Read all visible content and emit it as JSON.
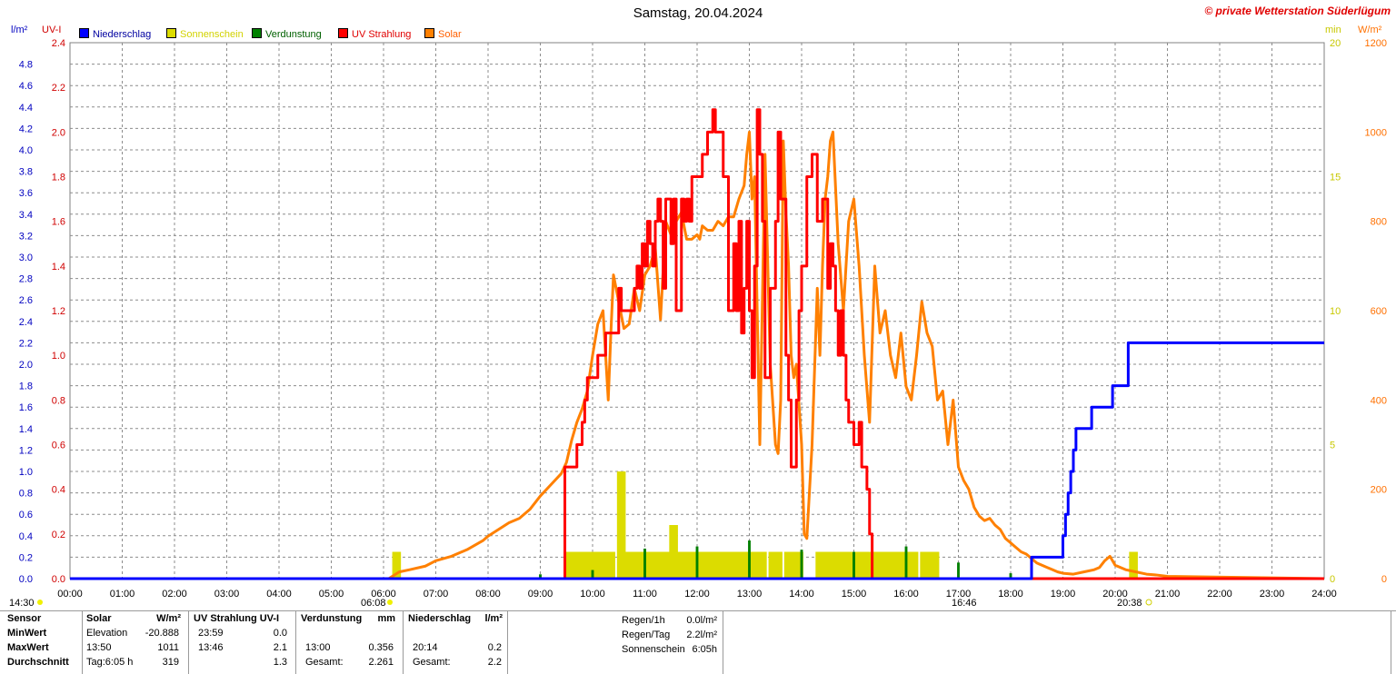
{
  "title": "Samstag, 20.04.2024",
  "copyright": "© private Wetterstation Süderlügum",
  "axis_units": {
    "left_outer": "l/m²",
    "left_inner": "UV-I",
    "right_inner": "min",
    "right_outer": "W/m²"
  },
  "legend": [
    {
      "label": "Niederschlag",
      "color": "#0000ff",
      "text_color": "#0000a0"
    },
    {
      "label": "Sonnenschein",
      "color": "#dcdc00",
      "text_color": "#d2d200"
    },
    {
      "label": "Verdunstung",
      "color": "#008000",
      "text_color": "#006000"
    },
    {
      "label": "UV Strahlung",
      "color": "#ff0000",
      "text_color": "#e00000"
    },
    {
      "label": "Solar",
      "color": "#ff8000",
      "text_color": "#ff6000"
    }
  ],
  "sun_events": {
    "left_time": "14:30",
    "sunrise": "06:08",
    "sunset_marker": "16:46",
    "sunset": "20:38"
  },
  "chart_data": {
    "type": "line",
    "x_label": "",
    "x_ticks": [
      "00:00",
      "01:00",
      "02:00",
      "03:00",
      "04:00",
      "05:00",
      "06:00",
      "07:00",
      "08:00",
      "09:00",
      "10:00",
      "11:00",
      "12:00",
      "13:00",
      "14:00",
      "15:00",
      "16:00",
      "17:00",
      "18:00",
      "19:00",
      "20:00",
      "21:00",
      "22:00",
      "23:00",
      "24:00"
    ],
    "x_range_hours": [
      0,
      24
    ],
    "axes": {
      "precip": {
        "unit": "l/m²",
        "range": [
          0,
          5.0
        ],
        "ticks": [
          "0.0",
          "0.2",
          "0.4",
          "0.6",
          "0.8",
          "1.0",
          "1.2",
          "1.4",
          "1.6",
          "1.8",
          "2.0",
          "2.2",
          "2.4",
          "2.6",
          "2.8",
          "3.0",
          "3.2",
          "3.4",
          "3.6",
          "3.8",
          "4.0",
          "4.2",
          "4.4",
          "4.6",
          "4.8"
        ]
      },
      "uv": {
        "unit": "UV-I",
        "range": [
          0,
          2.4
        ],
        "ticks": [
          "0.0",
          "0.2",
          "0.4",
          "0.6",
          "0.8",
          "1.0",
          "1.2",
          "1.4",
          "1.6",
          "1.8",
          "2.0",
          "2.2",
          "2.4"
        ]
      },
      "sunshine": {
        "unit": "min",
        "range": [
          0,
          20
        ],
        "ticks": [
          "0",
          "5",
          "10",
          "15",
          "20"
        ]
      },
      "solar": {
        "unit": "W/m²",
        "range": [
          0,
          1200
        ],
        "ticks": [
          "0",
          "200",
          "400",
          "600",
          "800",
          "1000",
          "1200"
        ]
      }
    },
    "grid": true,
    "series": [
      {
        "name": "Niederschlag",
        "axis": "precip",
        "color": "#0000ff",
        "style": "step",
        "x": [
          0,
          18.38,
          18.4,
          18.95,
          19.0,
          19.05,
          19.1,
          19.15,
          19.2,
          19.25,
          19.5,
          19.55,
          19.9,
          19.95,
          20.2,
          20.25,
          24
        ],
        "y": [
          0,
          0,
          0.2,
          0.2,
          0.4,
          0.6,
          0.8,
          1.0,
          1.2,
          1.4,
          1.4,
          1.6,
          1.6,
          1.8,
          1.8,
          2.2,
          2.2
        ]
      },
      {
        "name": "UV Strahlung",
        "axis": "uv",
        "color": "#ff0000",
        "style": "step",
        "x": [
          0,
          9.45,
          9.47,
          9.6,
          9.7,
          9.75,
          9.8,
          9.85,
          9.9,
          10.05,
          10.1,
          10.25,
          10.35,
          10.5,
          10.55,
          10.8,
          10.85,
          10.9,
          10.95,
          11.0,
          11.05,
          11.1,
          11.15,
          11.2,
          11.25,
          11.3,
          11.35,
          11.4,
          11.5,
          11.55,
          11.6,
          11.7,
          11.75,
          11.8,
          11.85,
          11.9,
          12.0,
          12.05,
          12.1,
          12.15,
          12.2,
          12.25,
          12.3,
          12.35,
          12.5,
          12.6,
          12.7,
          12.75,
          12.8,
          12.85,
          12.9,
          12.95,
          13.0,
          13.05,
          13.1,
          13.15,
          13.2,
          13.25,
          13.3,
          13.4,
          13.5,
          13.55,
          13.6,
          13.7,
          13.75,
          13.8,
          13.85,
          13.9,
          13.95,
          14.0,
          14.1,
          14.2,
          14.3,
          14.4,
          14.5,
          14.55,
          14.6,
          14.65,
          14.7,
          14.75,
          14.8,
          14.85,
          14.9,
          15.0,
          15.05,
          15.1,
          15.15,
          15.2,
          15.25,
          15.3,
          15.35,
          15.4,
          15.5,
          15.6,
          15.65,
          15.7,
          15.75,
          15.8,
          15.85,
          15.9,
          16.0,
          16.1,
          16.2,
          16.3,
          16.35,
          16.4,
          16.5,
          16.6,
          16.65,
          16.7,
          16.8,
          16.85,
          17.0,
          24
        ],
        "y": [
          0,
          0,
          0.5,
          0.5,
          0.6,
          0.6,
          0.7,
          0.8,
          0.9,
          0.9,
          1.0,
          1.1,
          1.1,
          1.3,
          1.2,
          1.3,
          1.4,
          1.3,
          1.5,
          1.4,
          1.6,
          1.5,
          1.4,
          1.6,
          1.7,
          1.6,
          1.3,
          1.7,
          1.5,
          1.7,
          1.2,
          1.7,
          1.6,
          1.7,
          1.6,
          1.8,
          1.8,
          1.8,
          1.9,
          1.9,
          2.0,
          2.0,
          2.1,
          2.0,
          1.8,
          1.2,
          1.5,
          1.2,
          1.6,
          1.1,
          1.3,
          1.6,
          1.2,
          0.9,
          1.4,
          2.1,
          1.9,
          1.6,
          0.9,
          1.3,
          1.6,
          2.0,
          1.7,
          1.0,
          0.8,
          0.5,
          0.5,
          0.8,
          1.2,
          1.4,
          1.8,
          1.9,
          1.6,
          1.7,
          1.3,
          1.5,
          1.4,
          1.2,
          1.0,
          1.2,
          1.0,
          0.8,
          0.7,
          0.6,
          0.6,
          0.7,
          0.5,
          0.5,
          0.4,
          0.2,
          0.0,
          0.0,
          0.0,
          0.0,
          0.0,
          0.0,
          0.0,
          0.0,
          0.0,
          0.0,
          0.0,
          0.0,
          0.0,
          0.0,
          0.0,
          0.0,
          0.0,
          0.0,
          0.0,
          0.0,
          0.0,
          0.0,
          0.0,
          0.0
        ]
      },
      {
        "name": "Solar",
        "axis": "solar",
        "color": "#ff8000",
        "style": "line",
        "x": [
          0,
          6.1,
          6.3,
          6.5,
          6.8,
          7.0,
          7.3,
          7.6,
          7.9,
          8.0,
          8.2,
          8.4,
          8.6,
          8.8,
          9.0,
          9.2,
          9.4,
          9.5,
          9.6,
          9.7,
          9.8,
          9.9,
          10.0,
          10.1,
          10.2,
          10.3,
          10.35,
          10.4,
          10.5,
          10.6,
          10.7,
          10.8,
          10.9,
          11.0,
          11.1,
          11.2,
          11.3,
          11.4,
          11.5,
          11.6,
          11.7,
          11.8,
          11.9,
          12.0,
          12.05,
          12.1,
          12.2,
          12.3,
          12.4,
          12.5,
          12.6,
          12.7,
          12.8,
          12.9,
          12.95,
          13.0,
          13.05,
          13.1,
          13.15,
          13.2,
          13.3,
          13.4,
          13.5,
          13.55,
          13.6,
          13.65,
          13.7,
          13.75,
          13.8,
          13.85,
          13.9,
          14.0,
          14.05,
          14.1,
          14.2,
          14.3,
          14.35,
          14.4,
          14.45,
          14.5,
          14.55,
          14.6,
          14.7,
          14.8,
          14.9,
          15.0,
          15.1,
          15.2,
          15.3,
          15.4,
          15.5,
          15.6,
          15.7,
          15.8,
          15.9,
          16.0,
          16.1,
          16.2,
          16.3,
          16.4,
          16.5,
          16.6,
          16.7,
          16.8,
          16.9,
          17.0,
          17.1,
          17.2,
          17.3,
          17.4,
          17.5,
          17.6,
          17.7,
          17.8,
          17.9,
          18.0,
          18.1,
          18.2,
          18.3,
          18.4,
          18.5,
          18.6,
          18.7,
          18.8,
          18.9,
          19.0,
          19.2,
          19.4,
          19.6,
          19.7,
          19.8,
          19.9,
          20.0,
          20.2,
          20.4,
          20.6,
          20.8,
          21.0,
          24
        ],
        "y": [
          0,
          0,
          15,
          20,
          28,
          40,
          50,
          65,
          85,
          95,
          110,
          125,
          135,
          155,
          185,
          210,
          235,
          260,
          310,
          350,
          380,
          420,
          500,
          570,
          600,
          400,
          550,
          680,
          620,
          560,
          570,
          650,
          600,
          680,
          700,
          740,
          580,
          800,
          770,
          800,
          820,
          760,
          760,
          770,
          760,
          790,
          780,
          780,
          800,
          790,
          810,
          810,
          850,
          880,
          950,
          1000,
          850,
          900,
          600,
          300,
          950,
          480,
          300,
          280,
          400,
          980,
          820,
          700,
          500,
          450,
          480,
          300,
          100,
          90,
          300,
          650,
          500,
          700,
          850,
          900,
          980,
          1000,
          750,
          600,
          800,
          850,
          700,
          500,
          350,
          700,
          550,
          600,
          500,
          450,
          550,
          430,
          400,
          500,
          620,
          550,
          520,
          400,
          420,
          300,
          400,
          250,
          220,
          200,
          160,
          140,
          130,
          135,
          120,
          110,
          90,
          80,
          70,
          60,
          55,
          45,
          35,
          30,
          25,
          20,
          15,
          12,
          10,
          15,
          20,
          25,
          40,
          50,
          30,
          20,
          15,
          10,
          8,
          5,
          0
        ]
      },
      {
        "name": "Sonnenschein",
        "axis": "sunshine",
        "color": "#dcdc00",
        "style": "bars",
        "bar_width_hours": 0.1667,
        "x": [
          6.25,
          9.55,
          9.65,
          9.75,
          9.85,
          9.95,
          10.05,
          10.15,
          10.25,
          10.35,
          10.55,
          10.65,
          10.75,
          10.85,
          10.95,
          11.05,
          11.15,
          11.25,
          11.35,
          11.45,
          11.55,
          11.65,
          11.75,
          11.85,
          11.95,
          12.05,
          12.15,
          12.25,
          12.35,
          12.45,
          12.55,
          12.65,
          12.75,
          12.85,
          12.95,
          13.05,
          13.15,
          13.25,
          13.45,
          13.55,
          13.75,
          13.85,
          13.95,
          14.35,
          14.45,
          14.55,
          14.65,
          14.75,
          14.85,
          14.95,
          15.05,
          15.15,
          15.25,
          15.35,
          15.45,
          15.55,
          15.65,
          15.75,
          15.85,
          15.95,
          16.05,
          16.15,
          16.35,
          16.45,
          16.55,
          20.35
        ],
        "y": [
          1,
          1,
          1,
          1,
          1,
          1,
          1,
          1,
          1,
          1,
          4,
          1,
          1,
          1,
          1,
          1,
          1,
          1,
          1,
          1,
          2,
          1,
          1,
          1,
          1,
          1,
          1,
          1,
          1,
          1,
          1,
          1,
          1,
          1,
          1,
          1,
          1,
          1,
          1,
          1,
          1,
          1,
          1,
          1,
          1,
          1,
          1,
          1,
          1,
          1,
          1,
          1,
          1,
          1,
          1,
          1,
          1,
          1,
          1,
          1,
          1,
          1,
          1,
          1,
          1,
          1
        ]
      },
      {
        "name": "Verdunstung",
        "axis": "precip",
        "color": "#008000",
        "style": "bars",
        "bar_width_hours": 0.05,
        "x": [
          1.0,
          2.0,
          5.0,
          6.0,
          8.0,
          9.0,
          10.0,
          11.0,
          12.0,
          13.0,
          14.0,
          15.0,
          16.0,
          17.0,
          18.0
        ],
        "y": [
          0.01,
          0.01,
          0.01,
          0.01,
          0.01,
          0.04,
          0.08,
          0.28,
          0.3,
          0.356,
          0.27,
          0.25,
          0.3,
          0.15,
          0.05
        ]
      }
    ]
  },
  "stats": {
    "headers": {
      "sensor": "Sensor",
      "solar": "Solar",
      "solar_unit": "W/m²",
      "uv": "UV Strahlung UV-I",
      "evap": "Verdunstung",
      "evap_unit": "mm",
      "precip": "Niederschlag",
      "precip_unit": "l/m²"
    },
    "rows": [
      {
        "label": "MinWert",
        "solar_time": "Elevation",
        "solar_val": "-20.888",
        "uv_time": "23:59",
        "uv_val": "0.0",
        "evap_time": "",
        "evap_val": "",
        "precip_time": "",
        "precip_val": ""
      },
      {
        "label": "MaxWert",
        "solar_time": "13:50",
        "solar_val": "1011",
        "uv_time": "13:46",
        "uv_val": "2.1",
        "evap_time": "13:00",
        "evap_val": "0.356",
        "precip_time": "20:14",
        "precip_val": "0.2"
      },
      {
        "label": "Durchschnitt",
        "solar_time": "Tag:6:05 h",
        "solar_val": "319",
        "uv_time": "",
        "uv_val": "1.3",
        "evap_time": "Gesamt:",
        "evap_val": "2.261",
        "precip_time": "Gesamt:",
        "precip_val": "2.2"
      }
    ],
    "summary": [
      {
        "label": "Regen/1h",
        "value": "0.0l/m²"
      },
      {
        "label": "Regen/Tag",
        "value": "2.2l/m²"
      },
      {
        "label": "Sonnenschein",
        "value": "6:05h"
      }
    ]
  }
}
